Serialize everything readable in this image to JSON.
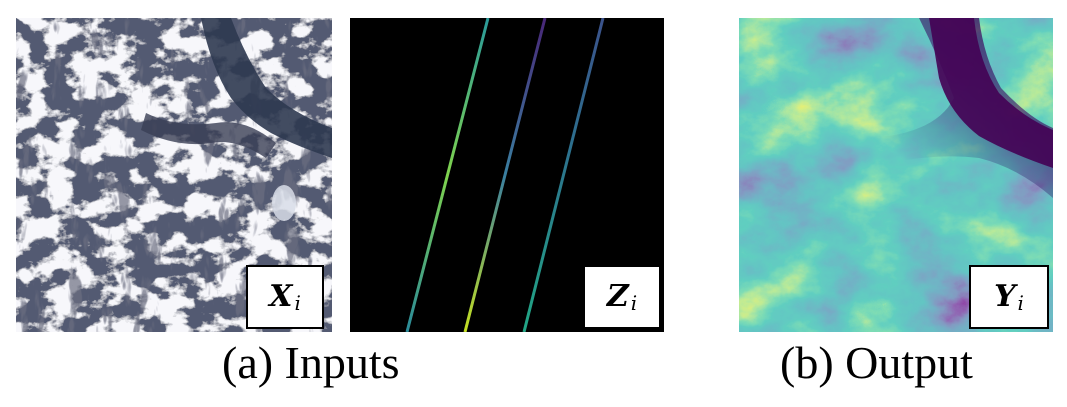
{
  "figure": {
    "panels": [
      {
        "id": "x",
        "tag_main": "X",
        "tag_sub": "i"
      },
      {
        "id": "z",
        "tag_main": "Z",
        "tag_sub": "i"
      },
      {
        "id": "y",
        "tag_main": "Y",
        "tag_sub": "i"
      }
    ],
    "captions": {
      "a": "(a) Inputs",
      "b": "(b) Output"
    }
  },
  "colors": {
    "satellite_base": "#4a4f66",
    "snow": "#e8e9f0",
    "lake": "#2b3347",
    "track_teal": "#2aa39a",
    "track_yellow_green": "#b5dd2b",
    "track_purple": "#46307a",
    "elevation_low": "#440154",
    "elevation_mid": "#21918c",
    "elevation_high": "#fde725"
  }
}
